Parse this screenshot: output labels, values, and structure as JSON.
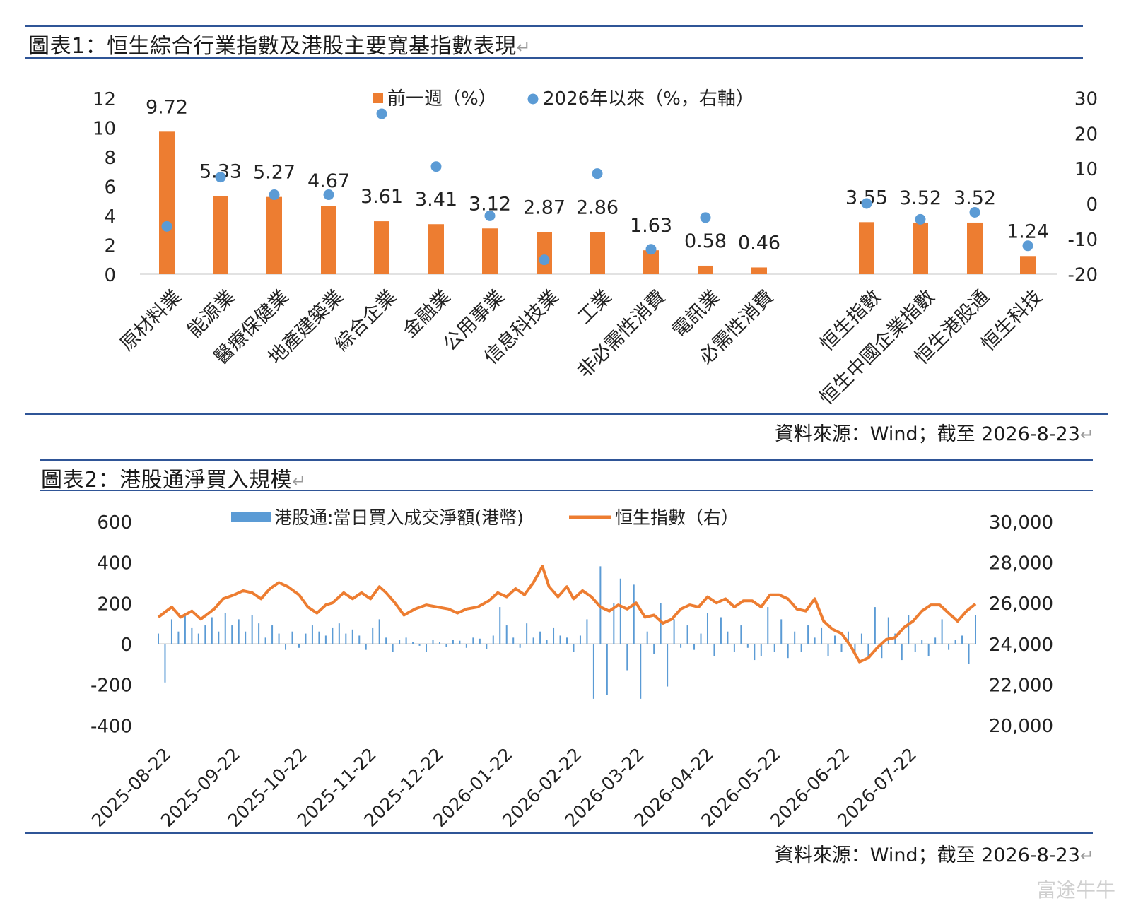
{
  "chart1": {
    "title": "圖表1：恒生綜合行業指數及港股主要寬基指數表現",
    "source": "資料來源：Wind；截至 2026-8-23"
  },
  "chart2": {
    "title": "圖表2：港股通淨買入規模",
    "source": "資料來源：Wind；截至 2026-8-23"
  },
  "return_mark": "↵",
  "watermark": "富途牛牛",
  "colors": {
    "bar": "#ed7d31",
    "dot": "#5b9bd5",
    "flow": "#5b9bd5",
    "line": "#ed7d31",
    "rule": "#2f5597"
  },
  "chart_data": [
    {
      "type": "bar",
      "legend": [
        "前一週（%）",
        "2026年以來（%，右軸）"
      ],
      "categories": [
        "原材料業",
        "能源業",
        "醫療保健業",
        "地產建築業",
        "綜合企業",
        "金融業",
        "公用事業",
        "信息科技業",
        "工業",
        "非必需性消費",
        "電訊業",
        "必需性消費",
        "恒生指數",
        "恒生中國企業指數",
        "恒生港股通",
        "恒生科技"
      ],
      "series": [
        {
          "name": "前一週（%）",
          "axis": "left",
          "values": [
            9.72,
            5.33,
            5.27,
            4.67,
            3.61,
            3.41,
            3.12,
            2.87,
            2.86,
            1.63,
            0.58,
            0.46,
            3.55,
            3.52,
            3.52,
            1.24
          ],
          "labels": [
            "9.72",
            "5.33",
            "5.27",
            "4.67",
            "3.61",
            "3.41",
            "3.12",
            "2.87",
            "2.86",
            "1.63",
            "0.58",
            "0.46",
            "3.55",
            "3.52",
            "3.52",
            "1.24"
          ]
        },
        {
          "name": "2026年以來（%，右軸）",
          "axis": "right",
          "values": [
            -6.5,
            7.5,
            2.5,
            2.5,
            25.5,
            10.5,
            -3.5,
            -16,
            8.5,
            -13,
            -4,
            null,
            0,
            -4.5,
            -2.5,
            -12
          ]
        }
      ],
      "y_left": {
        "range": [
          0,
          12
        ],
        "ticks": [
          "0",
          "2",
          "4",
          "6",
          "8",
          "10",
          "12"
        ]
      },
      "y_right": {
        "range": [
          -20,
          30
        ],
        "ticks": [
          "-20",
          "-10",
          "0",
          "10",
          "20",
          "30"
        ]
      }
    },
    {
      "type": "bar+line",
      "legend": [
        "港股通:當日買入成交淨額(港幣)",
        "恒生指數（右）"
      ],
      "x_ticks": [
        "2025-08-22",
        "2025-09-22",
        "2025-10-22",
        "2025-11-22",
        "2025-12-22",
        "2026-01-22",
        "2026-02-22",
        "2026-03-22",
        "2026-04-22",
        "2026-05-22",
        "2026-06-22",
        "2026-07-22"
      ],
      "y_left": {
        "range": [
          -400,
          600
        ],
        "ticks": [
          "-400",
          "-200",
          "0",
          "200",
          "400",
          "600"
        ]
      },
      "y_right": {
        "range": [
          20000,
          30000
        ],
        "ticks": [
          "20,000",
          "22,000",
          "24,000",
          "26,000",
          "28,000",
          "30,000"
        ]
      },
      "line_series": {
        "name": "恒生指數（右）",
        "points": [
          [
            "2025-08-22",
            25300
          ],
          [
            "2025-08-28",
            25800
          ],
          [
            "2025-09-01",
            25300
          ],
          [
            "2025-09-06",
            25600
          ],
          [
            "2025-09-10",
            25200
          ],
          [
            "2025-09-16",
            25700
          ],
          [
            "2025-09-20",
            26200
          ],
          [
            "2025-09-25",
            26400
          ],
          [
            "2025-09-29",
            26600
          ],
          [
            "2025-10-03",
            26500
          ],
          [
            "2025-10-07",
            26200
          ],
          [
            "2025-10-11",
            26700
          ],
          [
            "2025-10-15",
            27000
          ],
          [
            "2025-10-19",
            26800
          ],
          [
            "2025-10-24",
            26400
          ],
          [
            "2025-10-28",
            25800
          ],
          [
            "2025-11-01",
            25500
          ],
          [
            "2025-11-05",
            25900
          ],
          [
            "2025-11-08",
            26000
          ],
          [
            "2025-11-13",
            26500
          ],
          [
            "2025-11-17",
            26200
          ],
          [
            "2025-11-21",
            26500
          ],
          [
            "2025-11-25",
            26200
          ],
          [
            "2025-11-29",
            26800
          ],
          [
            "2025-12-02",
            26500
          ],
          [
            "2025-12-06",
            26000
          ],
          [
            "2025-12-10",
            25400
          ],
          [
            "2025-12-15",
            25700
          ],
          [
            "2025-12-20",
            25900
          ],
          [
            "2025-12-25",
            25800
          ],
          [
            "2025-12-30",
            25700
          ],
          [
            "2026-01-03",
            25500
          ],
          [
            "2026-01-07",
            25700
          ],
          [
            "2026-01-12",
            25800
          ],
          [
            "2026-01-17",
            26100
          ],
          [
            "2026-01-21",
            26500
          ],
          [
            "2026-01-25",
            26300
          ],
          [
            "2026-01-29",
            26700
          ],
          [
            "2026-02-02",
            26400
          ],
          [
            "2026-02-06",
            27000
          ],
          [
            "2026-02-10",
            27800
          ],
          [
            "2026-02-13",
            26800
          ],
          [
            "2026-02-17",
            26300
          ],
          [
            "2026-02-21",
            26800
          ],
          [
            "2026-02-24",
            26200
          ],
          [
            "2026-02-28",
            26600
          ],
          [
            "2026-03-04",
            26300
          ],
          [
            "2026-03-08",
            25800
          ],
          [
            "2026-03-12",
            25600
          ],
          [
            "2026-03-16",
            25900
          ],
          [
            "2026-03-20",
            25700
          ],
          [
            "2026-03-24",
            26000
          ],
          [
            "2026-03-28",
            25300
          ],
          [
            "2026-04-01",
            25400
          ],
          [
            "2026-04-05",
            25000
          ],
          [
            "2026-04-09",
            25200
          ],
          [
            "2026-04-13",
            25700
          ],
          [
            "2026-04-17",
            25900
          ],
          [
            "2026-04-21",
            25800
          ],
          [
            "2026-04-25",
            26300
          ],
          [
            "2026-04-29",
            26000
          ],
          [
            "2026-05-03",
            26200
          ],
          [
            "2026-05-07",
            25800
          ],
          [
            "2026-05-11",
            26100
          ],
          [
            "2026-05-15",
            26100
          ],
          [
            "2026-05-19",
            25800
          ],
          [
            "2026-05-23",
            26400
          ],
          [
            "2026-05-27",
            26400
          ],
          [
            "2026-05-31",
            26200
          ],
          [
            "2026-06-04",
            25700
          ],
          [
            "2026-06-08",
            25600
          ],
          [
            "2026-06-12",
            26200
          ],
          [
            "2026-06-16",
            25100
          ],
          [
            "2026-06-20",
            24700
          ],
          [
            "2026-06-24",
            24500
          ],
          [
            "2026-06-28",
            23900
          ],
          [
            "2026-07-02",
            23100
          ],
          [
            "2026-07-06",
            23300
          ],
          [
            "2026-07-10",
            23800
          ],
          [
            "2026-07-14",
            24200
          ],
          [
            "2026-07-18",
            24300
          ],
          [
            "2026-07-22",
            24800
          ],
          [
            "2026-07-26",
            25100
          ],
          [
            "2026-07-30",
            25600
          ],
          [
            "2026-08-03",
            25900
          ],
          [
            "2026-08-07",
            25900
          ],
          [
            "2026-08-11",
            25500
          ],
          [
            "2026-08-15",
            25100
          ],
          [
            "2026-08-19",
            25600
          ],
          [
            "2026-08-23",
            25950
          ]
        ]
      },
      "bar_series": {
        "name": "港股通:當日買入成交淨額(港幣)",
        "points": [
          [
            "2025-08-22",
            50
          ],
          [
            "2025-08-25",
            -190
          ],
          [
            "2025-08-28",
            120
          ],
          [
            "2025-08-31",
            60
          ],
          [
            "2025-09-03",
            140
          ],
          [
            "2025-09-06",
            80
          ],
          [
            "2025-09-09",
            50
          ],
          [
            "2025-09-12",
            90
          ],
          [
            "2025-09-15",
            130
          ],
          [
            "2025-09-18",
            60
          ],
          [
            "2025-09-21",
            150
          ],
          [
            "2025-09-24",
            90
          ],
          [
            "2025-09-27",
            120
          ],
          [
            "2025-09-30",
            60
          ],
          [
            "2025-10-03",
            140
          ],
          [
            "2025-10-06",
            100
          ],
          [
            "2025-10-09",
            30
          ],
          [
            "2025-10-12",
            90
          ],
          [
            "2025-10-15",
            50
          ],
          [
            "2025-10-18",
            -30
          ],
          [
            "2025-10-21",
            60
          ],
          [
            "2025-10-24",
            -20
          ],
          [
            "2025-10-27",
            50
          ],
          [
            "2025-10-30",
            90
          ],
          [
            "2025-11-02",
            60
          ],
          [
            "2025-11-05",
            40
          ],
          [
            "2025-11-08",
            80
          ],
          [
            "2025-11-11",
            100
          ],
          [
            "2025-11-14",
            50
          ],
          [
            "2025-11-17",
            70
          ],
          [
            "2025-11-20",
            40
          ],
          [
            "2025-11-23",
            -30
          ],
          [
            "2025-11-26",
            80
          ],
          [
            "2025-11-29",
            120
          ],
          [
            "2025-12-02",
            30
          ],
          [
            "2025-12-05",
            -40
          ],
          [
            "2025-12-08",
            20
          ],
          [
            "2025-12-11",
            30
          ],
          [
            "2025-12-14",
            10
          ],
          [
            "2025-12-17",
            -10
          ],
          [
            "2025-12-20",
            -40
          ],
          [
            "2025-12-23",
            20
          ],
          [
            "2025-12-26",
            10
          ],
          [
            "2025-12-29",
            -15
          ],
          [
            "2026-01-01",
            20
          ],
          [
            "2026-01-04",
            15
          ],
          [
            "2026-01-07",
            -20
          ],
          [
            "2026-01-10",
            30
          ],
          [
            "2026-01-13",
            25
          ],
          [
            "2026-01-16",
            -25
          ],
          [
            "2026-01-19",
            40
          ],
          [
            "2026-01-22",
            180
          ],
          [
            "2026-01-25",
            90
          ],
          [
            "2026-01-28",
            30
          ],
          [
            "2026-01-31",
            -20
          ],
          [
            "2026-02-03",
            100
          ],
          [
            "2026-02-06",
            30
          ],
          [
            "2026-02-09",
            60
          ],
          [
            "2026-02-12",
            20
          ],
          [
            "2026-02-15",
            80
          ],
          [
            "2026-02-18",
            40
          ],
          [
            "2026-02-21",
            30
          ],
          [
            "2026-02-24",
            -40
          ],
          [
            "2026-02-27",
            40
          ],
          [
            "2026-03-02",
            120
          ],
          [
            "2026-03-05",
            -270
          ],
          [
            "2026-03-08",
            380
          ],
          [
            "2026-03-11",
            -250
          ],
          [
            "2026-03-14",
            200
          ],
          [
            "2026-03-17",
            320
          ],
          [
            "2026-03-20",
            -130
          ],
          [
            "2026-03-23",
            290
          ],
          [
            "2026-03-26",
            -270
          ],
          [
            "2026-03-29",
            60
          ],
          [
            "2026-04-01",
            -50
          ],
          [
            "2026-04-04",
            200
          ],
          [
            "2026-04-07",
            -210
          ],
          [
            "2026-04-10",
            120
          ],
          [
            "2026-04-13",
            -20
          ],
          [
            "2026-04-16",
            90
          ],
          [
            "2026-04-19",
            -30
          ],
          [
            "2026-04-22",
            50
          ],
          [
            "2026-04-25",
            150
          ],
          [
            "2026-04-28",
            -60
          ],
          [
            "2026-05-01",
            130
          ],
          [
            "2026-05-04",
            60
          ],
          [
            "2026-05-07",
            -40
          ],
          [
            "2026-05-10",
            90
          ],
          [
            "2026-05-13",
            -20
          ],
          [
            "2026-05-16",
            -80
          ],
          [
            "2026-05-19",
            -60
          ],
          [
            "2026-05-22",
            180
          ],
          [
            "2026-05-25",
            -40
          ],
          [
            "2026-05-28",
            120
          ],
          [
            "2026-05-31",
            -70
          ],
          [
            "2026-06-03",
            60
          ],
          [
            "2026-06-06",
            -40
          ],
          [
            "2026-06-09",
            90
          ],
          [
            "2026-06-12",
            30
          ],
          [
            "2026-06-15",
            80
          ],
          [
            "2026-06-18",
            -60
          ],
          [
            "2026-06-21",
            40
          ],
          [
            "2026-06-24",
            -40
          ],
          [
            "2026-06-27",
            60
          ],
          [
            "2026-06-30",
            -50
          ],
          [
            "2026-07-03",
            50
          ],
          [
            "2026-07-06",
            -60
          ],
          [
            "2026-07-09",
            180
          ],
          [
            "2026-07-12",
            -70
          ],
          [
            "2026-07-15",
            130
          ],
          [
            "2026-07-18",
            50
          ],
          [
            "2026-07-21",
            -80
          ],
          [
            "2026-07-24",
            140
          ],
          [
            "2026-07-27",
            -40
          ],
          [
            "2026-07-30",
            20
          ],
          [
            "2026-08-02",
            -60
          ],
          [
            "2026-08-05",
            30
          ],
          [
            "2026-08-08",
            120
          ],
          [
            "2026-08-11",
            -30
          ],
          [
            "2026-08-14",
            20
          ],
          [
            "2026-08-17",
            40
          ],
          [
            "2026-08-20",
            -100
          ],
          [
            "2026-08-23",
            140
          ]
        ]
      }
    }
  ]
}
